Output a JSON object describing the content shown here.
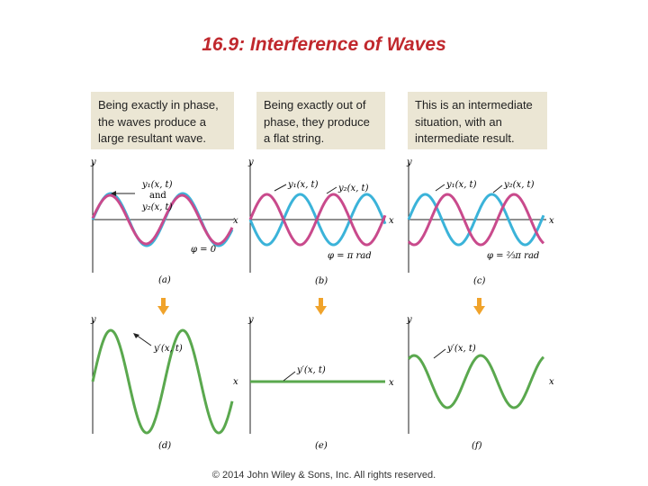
{
  "title": "16.9: Interference of Waves",
  "captions": [
    "Being exactly in phase, the waves produce a large resultant wave.",
    "Being exactly out of phase, they produce a flat string.",
    "This is an intermediate situation, with an intermediate result."
  ],
  "panels_top": [
    {
      "label": "(a)",
      "curve_label_1": "y₁(x, t)",
      "joiner": "and",
      "curve_label_2": "y₂(x, t)",
      "phase": "φ = 0"
    },
    {
      "label": "(b)",
      "curve_label_1": "y₁(x, t)",
      "curve_label_2": "y₂(x, t)",
      "phase": "φ = π rad"
    },
    {
      "label": "(c)",
      "curve_label_1": "y₁(x, t)",
      "curve_label_2": "y₂(x, t)",
      "phase": "φ = ⅔π rad"
    }
  ],
  "panels_bottom": [
    {
      "label": "(d)",
      "curve_label": "y′(x, t)"
    },
    {
      "label": "(e)",
      "curve_label": "y′(x, t)"
    },
    {
      "label": "(f)",
      "curve_label": "y′(x, t)"
    }
  ],
  "axis": {
    "y": "y",
    "x": "x"
  },
  "colors": {
    "title": "#c0282d",
    "caption_bg": "#ebe6d4",
    "wave_1": "#3bb3d9",
    "wave_2": "#c94a8c",
    "resultant": "#5aa84e",
    "arrow": "#f0a32b"
  },
  "copyright": "© 2014 John Wiley & Sons, Inc. All rights reserved."
}
